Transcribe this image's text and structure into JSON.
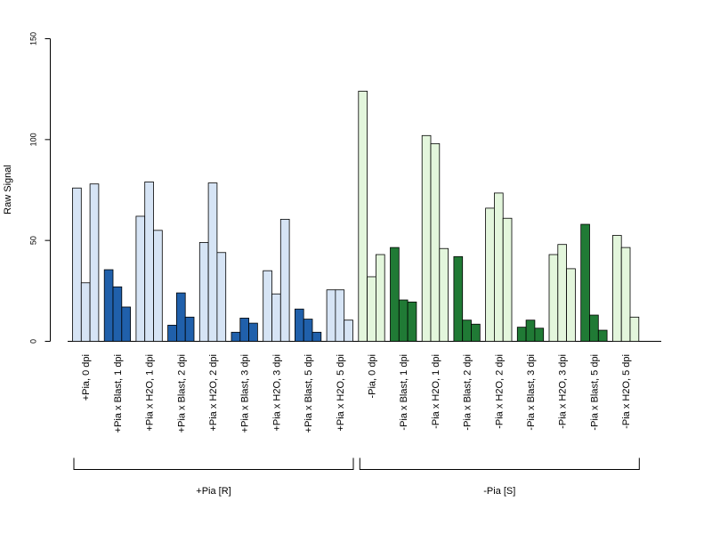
{
  "chart_data": {
    "type": "bar",
    "ylabel": "Raw Signal",
    "ylim": [
      0,
      150
    ],
    "yticks": [
      0,
      50,
      100,
      150
    ],
    "grid": false,
    "colors": {
      "light_blue": "#d6e4f5",
      "dark_blue": "#2060ab",
      "light_green": "#e3f6dc",
      "dark_green": "#207a35",
      "stroke": "#000000"
    },
    "groups": [
      {
        "label": "+Pia, 0 dpi",
        "values": [
          76,
          29,
          78
        ],
        "color": "light_blue"
      },
      {
        "label": "+Pia x Blast, 1 dpi",
        "values": [
          35.5,
          27,
          17
        ],
        "color": "dark_blue"
      },
      {
        "label": "+Pia x H2O, 1 dpi",
        "values": [
          62,
          79,
          55
        ],
        "color": "light_blue"
      },
      {
        "label": "+Pia x Blast, 2 dpi",
        "values": [
          8,
          24,
          12
        ],
        "color": "dark_blue"
      },
      {
        "label": "+Pia x H2O, 2 dpi",
        "values": [
          49,
          78.5,
          44
        ],
        "color": "light_blue"
      },
      {
        "label": "+Pia x Blast, 3 dpi",
        "values": [
          4.5,
          11.5,
          9
        ],
        "color": "dark_blue"
      },
      {
        "label": "+Pia x H2O, 3 dpi",
        "values": [
          35,
          23.5,
          60.5
        ],
        "color": "light_blue"
      },
      {
        "label": "+Pia x Blast, 5 dpi",
        "values": [
          16,
          11,
          4.5
        ],
        "color": "dark_blue"
      },
      {
        "label": "+Pia x H2O, 5 dpi",
        "values": [
          25.5,
          25.5,
          10.5
        ],
        "color": "light_blue"
      },
      {
        "label": "-Pia, 0 dpi",
        "values": [
          124,
          32,
          43
        ],
        "color": "light_green"
      },
      {
        "label": "-Pia x Blast, 1 dpi",
        "values": [
          46.5,
          20.5,
          19.5
        ],
        "color": "dark_green"
      },
      {
        "label": "-Pia x H2O, 1 dpi",
        "values": [
          102,
          98,
          46
        ],
        "color": "light_green"
      },
      {
        "label": "-Pia x Blast, 2 dpi",
        "values": [
          42,
          10.5,
          8.5
        ],
        "color": "dark_green"
      },
      {
        "label": "-Pia x H2O, 2 dpi",
        "values": [
          66,
          73.5,
          61
        ],
        "color": "light_green"
      },
      {
        "label": "-Pia x Blast, 3 dpi",
        "values": [
          7,
          10.5,
          6.5
        ],
        "color": "dark_green"
      },
      {
        "label": "-Pia x H2O, 3 dpi",
        "values": [
          43,
          48,
          36
        ],
        "color": "light_green"
      },
      {
        "label": "-Pia x Blast, 5 dpi",
        "values": [
          58,
          13,
          5.5
        ],
        "color": "dark_green"
      },
      {
        "label": "-Pia x H2O, 5 dpi",
        "values": [
          52.5,
          46.5,
          12
        ],
        "color": "light_green"
      }
    ],
    "brackets": [
      {
        "label": "+Pia [R]",
        "from_group": 0,
        "to_group": 8
      },
      {
        "label": "-Pia [S]",
        "from_group": 9,
        "to_group": 17
      }
    ]
  }
}
